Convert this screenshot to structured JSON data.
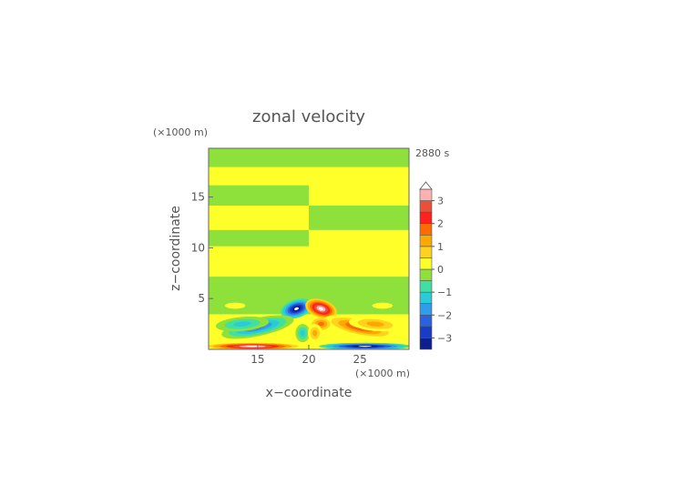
{
  "chart_data": {
    "type": "heatmap",
    "title": "zonal velocity",
    "time_label": "2880 s",
    "xlabel": "x−coordinate",
    "ylabel": "z−coordinate",
    "x_unit": "(×1000 m)",
    "y_unit": "(×1000 m)",
    "xlim": [
      10.2,
      29.8
    ],
    "ylim": [
      0,
      19.8
    ],
    "x_ticks": [
      15,
      20,
      25
    ],
    "y_ticks": [
      5,
      10,
      15
    ],
    "colorbar": {
      "ticks": [
        3,
        2,
        1,
        0,
        -1,
        -2,
        -3
      ],
      "tick_labels": [
        "3",
        "2",
        "1",
        "0",
        "−1",
        "−2",
        "−3"
      ],
      "levels": [
        -3.5,
        -3,
        -2.5,
        -2,
        -1.5,
        -1,
        -0.5,
        0,
        0.5,
        1,
        1.5,
        2,
        2.5,
        3,
        3.5
      ],
      "colors": [
        "#0d1f8f",
        "#1a3bc4",
        "#2a62e0",
        "#2f9cec",
        "#2cc9d6",
        "#3ee0a4",
        "#8ee03a",
        "#ffff2a",
        "#ffd21e",
        "#ffa800",
        "#ff6a00",
        "#ff2020",
        "#e8503a",
        "#ffb0b0"
      ],
      "extend": "max"
    },
    "bands": [
      {
        "z_from": 0,
        "z_to": 3.5,
        "left": 0.1,
        "right": 0.1
      },
      {
        "z_from": 3.5,
        "z_to": 7.2,
        "left": -0.2,
        "right": -0.2
      },
      {
        "z_from": 7.2,
        "z_to": 10.2,
        "left": 0.25,
        "right": 0.1
      },
      {
        "z_from": 10.2,
        "z_to": 11.8,
        "left": -0.2,
        "right": 0.2
      },
      {
        "z_from": 11.8,
        "z_to": 14.2,
        "left": 0.25,
        "right": -0.2
      },
      {
        "z_from": 14.2,
        "z_to": 16.2,
        "left": -0.2,
        "right": 0.25
      },
      {
        "z_from": 16.2,
        "z_to": 18.0,
        "left": 0.25,
        "right": 0.25
      },
      {
        "z_from": 18.0,
        "z_to": 19.8,
        "left": -0.2,
        "right": -0.2
      }
    ],
    "x_split": 20,
    "features": [
      {
        "cx": 18.8,
        "cz": 4.0,
        "rx": 1.6,
        "rz": 0.9,
        "rot": -18,
        "value": -3.6
      },
      {
        "cx": 15.0,
        "cz": 2.2,
        "rx": 3.6,
        "rz": 0.9,
        "rot": -12,
        "value": -2.4
      },
      {
        "cx": 13.5,
        "cz": 2.5,
        "rx": 2.6,
        "rz": 0.7,
        "rot": -5,
        "value": -1.3
      },
      {
        "cx": 21.2,
        "cz": 4.0,
        "rx": 1.6,
        "rz": 0.9,
        "rot": 18,
        "value": 3.6
      },
      {
        "cx": 25.0,
        "cz": 2.2,
        "rx": 3.6,
        "rz": 0.9,
        "rot": 12,
        "value": 2.4
      },
      {
        "cx": 26.5,
        "cz": 2.5,
        "rx": 2.6,
        "rz": 0.7,
        "rot": 5,
        "value": 1.3
      },
      {
        "cx": 21.2,
        "cz": 2.5,
        "rx": 0.9,
        "rz": 0.6,
        "rot": 0,
        "value": 1.6
      },
      {
        "cx": 19.4,
        "cz": 1.6,
        "rx": 0.7,
        "rz": 0.9,
        "rot": 0,
        "value": -1.4
      },
      {
        "cx": 20.6,
        "cz": 1.6,
        "rx": 0.7,
        "rz": 0.9,
        "rot": 0,
        "value": 1.4
      },
      {
        "cx": 14.5,
        "cz": 0.3,
        "rx": 4.5,
        "rz": 0.35,
        "rot": 0,
        "value": 3.6
      },
      {
        "cx": 25.5,
        "cz": 0.3,
        "rx": 4.5,
        "rz": 0.35,
        "rot": 0,
        "value": -3.6
      },
      {
        "cx": 12.8,
        "cz": 4.3,
        "rx": 1.0,
        "rz": 0.3,
        "rot": 0,
        "value": 0.4
      },
      {
        "cx": 27.2,
        "cz": 4.3,
        "rx": 1.0,
        "rz": 0.3,
        "rot": 0,
        "value": 0.4
      }
    ]
  }
}
